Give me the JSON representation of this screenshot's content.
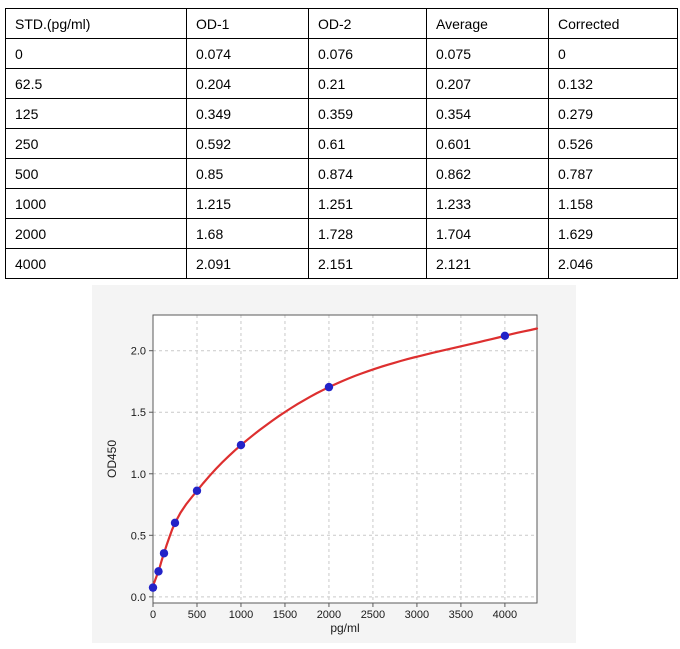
{
  "table": {
    "headers": [
      "STD.(pg/ml)",
      "OD-1",
      "OD-2",
      "Average",
      "Corrected"
    ],
    "rows": [
      [
        "0",
        "0.074",
        "0.076",
        "0.075",
        "0"
      ],
      [
        "62.5",
        "0.204",
        "0.21",
        "0.207",
        "0.132"
      ],
      [
        "125",
        "0.349",
        "0.359",
        "0.354",
        "0.279"
      ],
      [
        "250",
        "0.592",
        "0.61",
        "0.601",
        "0.526"
      ],
      [
        "500",
        "0.85",
        "0.874",
        "0.862",
        "0.787"
      ],
      [
        "1000",
        "1.215",
        "1.251",
        "1.233",
        "1.158"
      ],
      [
        "2000",
        "1.68",
        "1.728",
        "1.704",
        "1.629"
      ],
      [
        "4000",
        "2.091",
        "2.151",
        "2.121",
        "2.046"
      ]
    ]
  },
  "chart_data": {
    "type": "scatter",
    "title": "",
    "xlabel": "pg/ml",
    "ylabel": "OD450",
    "xlim": [
      0,
      4365
    ],
    "ylim": [
      -0.05,
      2.29
    ],
    "xtick_values": [
      0,
      500,
      1000,
      1500,
      2000,
      2500,
      3000,
      3500,
      4000
    ],
    "xtick_labels": [
      "0",
      "500",
      "1000",
      "1500",
      "2000",
      "2500",
      "3000",
      "3500",
      "4000"
    ],
    "ytick_values": [
      0,
      0.5,
      1,
      1.5,
      2
    ],
    "ytick_labels": [
      "0.0",
      "0.5",
      "1.0",
      "1.5",
      "2.0"
    ],
    "grid": true,
    "legend_position": "none",
    "points": {
      "label": "standard-averages",
      "x": [
        0,
        62.5,
        125,
        250,
        500,
        1000,
        2000,
        4000
      ],
      "y": [
        0.075,
        0.207,
        0.354,
        0.601,
        0.862,
        1.233,
        1.704,
        2.121
      ],
      "color": "#2323c8",
      "marker": "circle"
    },
    "fit_curve": {
      "label": "4pl-fit",
      "x": [
        0,
        62.5,
        125,
        250,
        500,
        1000,
        2000,
        4000,
        4365
      ],
      "y": [
        0.09,
        0.21,
        0.355,
        0.6,
        0.862,
        1.233,
        1.704,
        2.121,
        2.18
      ],
      "color": "#dd2f2f"
    },
    "colors": {
      "figure_bg": "#f4f4f4",
      "plot_bg": "#ffffff",
      "grid": "#c9c9c9",
      "spine": "#5a5a5a",
      "tick_label": "#1a1a1a"
    }
  }
}
